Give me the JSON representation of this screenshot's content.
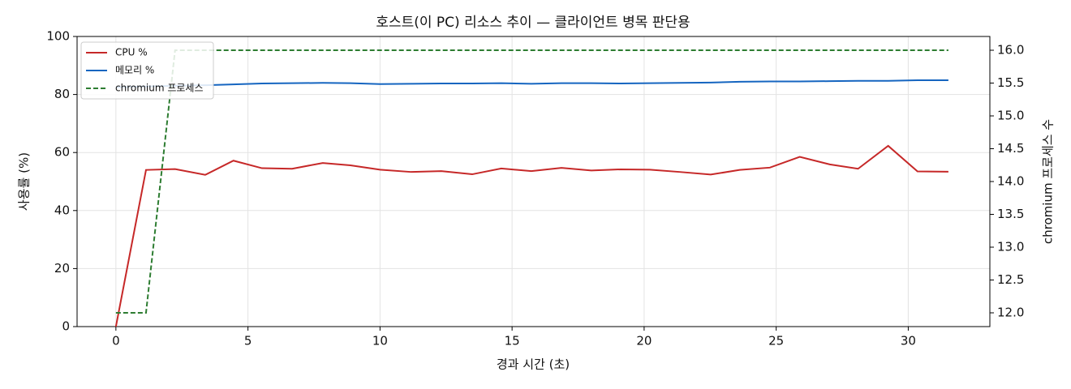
{
  "chart_data": {
    "type": "line",
    "title": "호스트(이 PC) 리소스 추이 — 클라이언트 병목 판단용",
    "x_label": "경과 시간 (초)",
    "y_label": "사용률 (%)",
    "y2_label": "chromium 프로세스 수",
    "x": [
      0,
      1.14,
      2.24,
      3.38,
      4.45,
      5.53,
      6.67,
      7.83,
      8.88,
      10.0,
      11.18,
      12.32,
      13.49,
      14.59,
      15.73,
      16.87,
      18.0,
      19.11,
      20.22,
      21.35,
      22.52,
      23.62,
      24.76,
      25.89,
      27.03,
      28.1,
      29.24,
      30.35,
      31.52
    ],
    "series": [
      {
        "name": "CPU %",
        "color": "#c62828",
        "dash": false,
        "values": [
          0,
          54,
          54.3,
          52.3,
          57.2,
          54.6,
          54.4,
          56.4,
          55.6,
          54.1,
          53.3,
          53.6,
          52.5,
          54.5,
          53.6,
          54.7,
          53.8,
          54.2,
          54.1,
          53.3,
          52.4,
          54.0,
          54.8,
          58.5,
          55.9,
          54.4,
          62.3,
          53.5,
          53.4
        ]
      },
      {
        "name": "메모리 %",
        "color": "#1565c0",
        "dash": false,
        "values": [
          82.5,
          82.8,
          83,
          83.2,
          83.5,
          83.8,
          83.9,
          84,
          83.9,
          83.6,
          83.7,
          83.8,
          83.8,
          83.9,
          83.7,
          83.9,
          83.9,
          83.8,
          83.9,
          84,
          84.1,
          84.4,
          84.5,
          84.5,
          84.6,
          84.7,
          84.7,
          84.9,
          84.9
        ]
      },
      {
        "name": "chromium 프로세스",
        "color": "#2e7d32",
        "dash": true,
        "axis": "y2",
        "values": [
          12,
          12,
          16,
          16,
          16,
          16,
          16,
          16,
          16,
          16,
          16,
          16,
          16,
          16,
          16,
          16,
          16,
          16,
          16,
          16,
          16,
          16,
          16,
          16,
          16,
          16,
          16,
          16,
          16
        ]
      }
    ],
    "xlim": [
      -1.47,
      33.09
    ],
    "xticks": [
      0,
      5,
      10,
      15,
      20,
      25,
      30
    ],
    "ylim": [
      0,
      100
    ],
    "yticks": [
      0,
      20,
      40,
      60,
      80,
      100
    ],
    "y2lim": [
      11.79,
      16.21
    ],
    "y2ticks": [
      {
        "value": 12,
        "label": "12.0"
      },
      {
        "value": 12.5,
        "label": "12.5"
      },
      {
        "value": 13,
        "label": "13.0"
      },
      {
        "value": 13.5,
        "label": "13.5"
      },
      {
        "value": 14,
        "label": "14.0"
      },
      {
        "value": 14.5,
        "label": "14.5"
      },
      {
        "value": 15,
        "label": "15.0"
      },
      {
        "value": 15.5,
        "label": "15.5"
      },
      {
        "value": 16,
        "label": "16.0"
      }
    ],
    "grid": true,
    "legend": "upper-left"
  }
}
